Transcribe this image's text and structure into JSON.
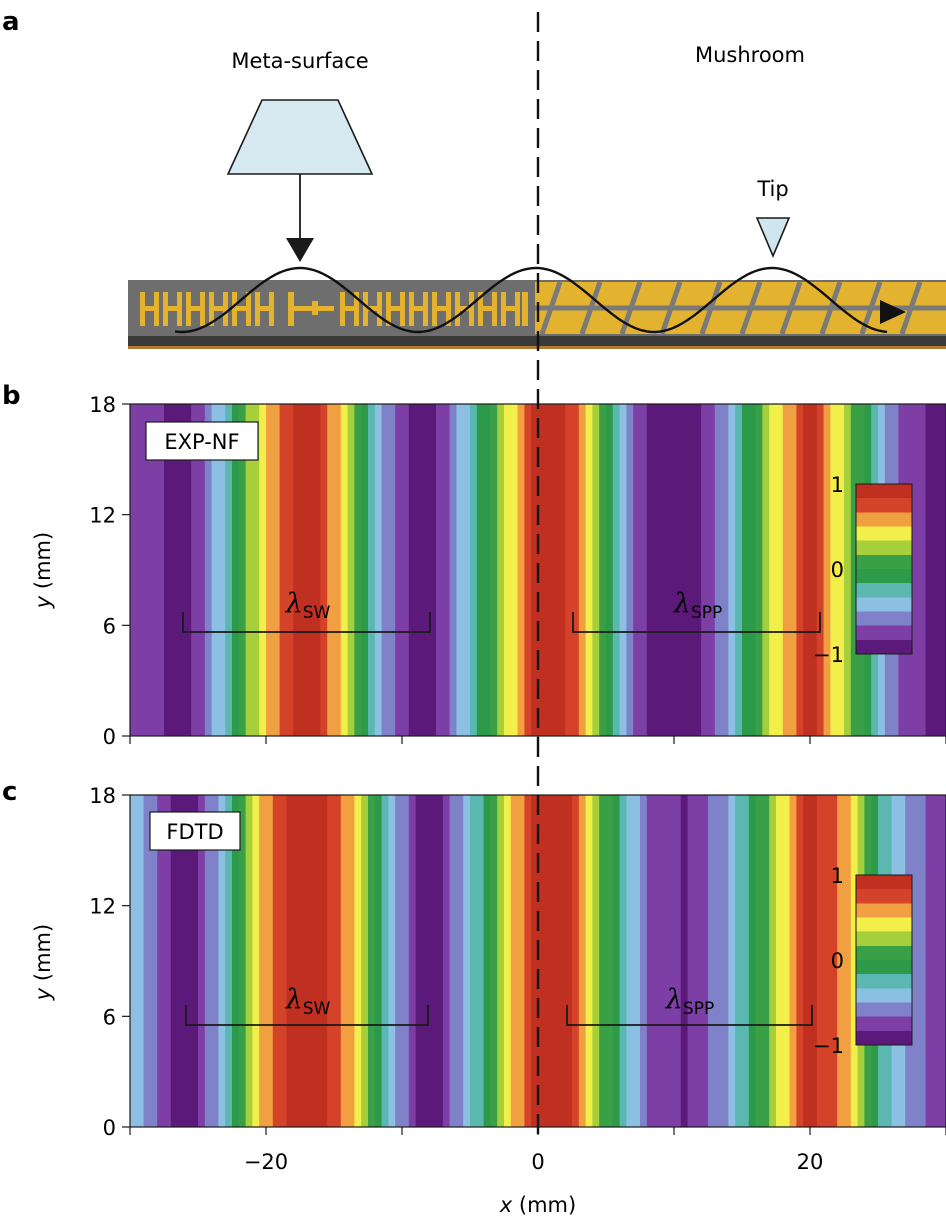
{
  "panels": {
    "a": {
      "label": "a",
      "left_title": "Meta-surface",
      "right_title": "Mushroom",
      "tip_label": "Tip",
      "colors": {
        "strip": "#6e6e6e",
        "gold": "#e3b22e",
        "source": "#d6e8f0",
        "tip": "#cfe6ef"
      }
    },
    "b": {
      "label": "b",
      "tag": "EXP-NF",
      "lambda_left": {
        "symbol": "λ",
        "sub": "SW"
      },
      "lambda_right": {
        "symbol": "λ",
        "sub": "SPP"
      },
      "colorbar_ticks": [
        "1",
        "0",
        "−1"
      ],
      "y_label": "y",
      "y_unit": "(mm)",
      "y_ticks": [
        "0",
        "6",
        "12",
        "18"
      ]
    },
    "c": {
      "label": "c",
      "tag": "FDTD",
      "lambda_left": {
        "symbol": "λ",
        "sub": "SW"
      },
      "lambda_right": {
        "symbol": "λ",
        "sub": "SPP"
      },
      "colorbar_ticks": [
        "1",
        "0",
        "−1"
      ],
      "y_label": "y",
      "y_unit": "(mm)",
      "y_ticks": [
        "0",
        "6",
        "12",
        "18"
      ],
      "x_label": "x",
      "x_unit": "(mm)",
      "x_ticks": [
        "−20",
        "0",
        "20"
      ]
    }
  },
  "colormap": [
    "#5b1a7a",
    "#7d3fa6",
    "#7f82c9",
    "#8cc0e2",
    "#5ab8b0",
    "#2d9a4a",
    "#3aa048",
    "#a6cf3c",
    "#f2ee4a",
    "#f0a040",
    "#d4422a",
    "#c03020"
  ],
  "chart_data": [
    {
      "type": "heatmap",
      "panel": "b",
      "xlim": [
        -30,
        30
      ],
      "ylim": [
        0,
        18
      ],
      "zlim": [
        -1,
        1
      ],
      "interface_x": 0,
      "sw_wavelength_mm": 18,
      "spp_wavelength_mm": 18,
      "field_profile_x": [
        -29,
        -26,
        -23,
        -20,
        -17,
        -14,
        -11,
        -8,
        -5,
        -2,
        0,
        2,
        5,
        8,
        11,
        14,
        17,
        20,
        23,
        26,
        29
      ],
      "field_profile_z": [
        -0.7,
        -1,
        -0.3,
        0.5,
        1,
        0.4,
        -0.6,
        -1,
        -0.3,
        0.4,
        0.9,
        0.9,
        0,
        -0.9,
        -1,
        -0.5,
        0.3,
        0.9,
        0.2,
        -0.6,
        -0.9
      ]
    },
    {
      "type": "heatmap",
      "panel": "c",
      "xlim": [
        -30,
        30
      ],
      "ylim": [
        0,
        18
      ],
      "zlim": [
        -1,
        1
      ],
      "interface_x": 0,
      "sw_wavelength_mm": 18,
      "spp_wavelength_mm": 18,
      "field_profile_x": [
        -29,
        -26,
        -23,
        -20,
        -17,
        -14,
        -11,
        -8,
        -5,
        -2,
        0,
        2,
        5,
        8,
        11,
        14,
        17,
        20,
        23,
        26,
        29
      ],
      "field_profile_z": [
        -0.5,
        -1,
        -0.4,
        0.6,
        1,
        0.6,
        -0.4,
        -1,
        -0.4,
        0.5,
        0.9,
        0.9,
        0.1,
        -0.7,
        -0.85,
        -0.5,
        0.2,
        0.9,
        0.5,
        -0.4,
        -0.7
      ]
    }
  ]
}
